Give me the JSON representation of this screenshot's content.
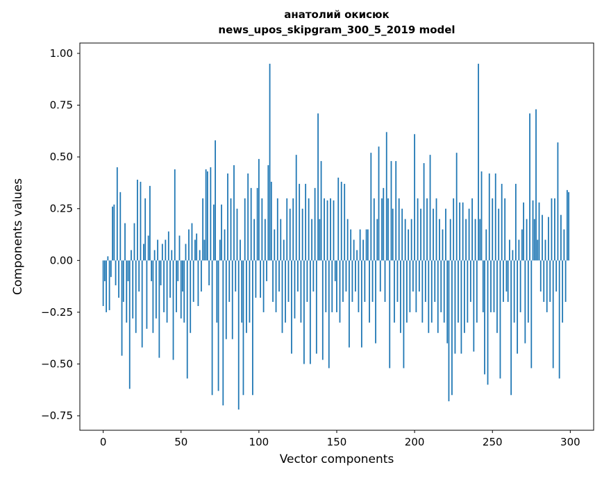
{
  "chart_data": {
    "type": "bar",
    "title": "анатолий окисюк",
    "subtitle": "news_upos_skipgram_300_5_2019 model",
    "xlabel": "Vector components",
    "ylabel": "Components values",
    "bar_color": "#1f77b4",
    "axis_color": "#000000",
    "background_color": "#ffffff",
    "n_components": 300,
    "xlim": [
      -15,
      315
    ],
    "ylim": [
      -0.82,
      1.05
    ],
    "xticks": [
      0,
      50,
      100,
      150,
      200,
      250,
      300
    ],
    "xtick_labels": [
      "0",
      "50",
      "100",
      "150",
      "200",
      "250",
      "300"
    ],
    "yticks": [
      1.0,
      0.75,
      0.5,
      0.25,
      0.0,
      -0.25,
      -0.5,
      -0.75
    ],
    "ytick_labels": [
      "1.00",
      "0.75",
      "0.50",
      "0.25",
      "0.00",
      "−0.25",
      "−0.50",
      "−0.75"
    ],
    "grid": false,
    "legend": false,
    "values": [
      -0.22,
      -0.1,
      -0.25,
      0.02,
      -0.24,
      -0.08,
      0.26,
      0.27,
      -0.12,
      0.45,
      -0.18,
      0.33,
      -0.46,
      -0.2,
      0.18,
      -0.3,
      -0.1,
      -0.62,
      0.05,
      -0.28,
      0.18,
      -0.35,
      0.39,
      -0.15,
      0.38,
      -0.42,
      0.08,
      0.3,
      -0.33,
      0.12,
      0.36,
      -0.1,
      -0.35,
      0.05,
      -0.28,
      0.1,
      -0.47,
      -0.12,
      0.08,
      -0.25,
      0.1,
      -0.3,
      0.14,
      -0.18,
      0.05,
      -0.48,
      0.44,
      -0.25,
      -0.1,
      0.12,
      -0.28,
      -0.15,
      -0.3,
      0.08,
      -0.57,
      0.15,
      -0.35,
      0.18,
      -0.2,
      0.1,
      0.13,
      -0.22,
      0.05,
      -0.15,
      0.3,
      0.1,
      0.44,
      0.43,
      -0.12,
      0.45,
      -0.65,
      0.27,
      0.58,
      -0.3,
      -0.63,
      0.1,
      0.27,
      -0.7,
      0.15,
      -0.38,
      0.42,
      -0.2,
      0.3,
      -0.38,
      0.46,
      -0.15,
      0.25,
      -0.72,
      0.1,
      -0.3,
      -0.65,
      0.3,
      -0.35,
      0.42,
      -0.3,
      0.35,
      -0.65,
      0.2,
      -0.18,
      0.35,
      0.49,
      -0.18,
      0.3,
      -0.25,
      0.2,
      -0.1,
      0.46,
      0.95,
      0.38,
      -0.2,
      0.15,
      -0.25,
      0.3,
      -0.15,
      0.2,
      -0.35,
      0.1,
      -0.3,
      0.3,
      -0.2,
      0.25,
      -0.45,
      0.3,
      -0.28,
      0.51,
      -0.15,
      0.37,
      -0.3,
      0.25,
      -0.5,
      0.37,
      -0.2,
      0.3,
      -0.5,
      0.2,
      -0.15,
      0.35,
      -0.45,
      0.71,
      0.2,
      0.48,
      -0.48,
      0.3,
      -0.25,
      0.29,
      -0.52,
      0.3,
      -0.25,
      0.29,
      -0.1,
      -0.25,
      0.4,
      -0.3,
      0.38,
      -0.2,
      0.37,
      -0.15,
      0.2,
      -0.42,
      0.15,
      -0.2,
      0.1,
      -0.15,
      0.05,
      -0.25,
      0.15,
      -0.42,
      0.1,
      -0.2,
      0.15,
      0.15,
      -0.3,
      0.52,
      -0.2,
      0.3,
      -0.4,
      0.2,
      0.55,
      -0.15,
      0.3,
      0.35,
      -0.2,
      0.62,
      0.3,
      -0.52,
      0.48,
      0.25,
      -0.3,
      0.48,
      -0.2,
      0.3,
      -0.35,
      0.25,
      -0.52,
      0.2,
      -0.3,
      0.15,
      -0.25,
      0.2,
      -0.15,
      0.61,
      -0.25,
      0.3,
      -0.15,
      0.25,
      -0.3,
      0.47,
      -0.2,
      0.3,
      -0.35,
      0.51,
      -0.3,
      0.25,
      -0.2,
      0.3,
      -0.35,
      0.2,
      -0.25,
      0.15,
      -0.3,
      0.25,
      -0.4,
      -0.68,
      0.2,
      -0.65,
      0.3,
      -0.45,
      0.52,
      -0.3,
      0.28,
      -0.45,
      0.28,
      -0.35,
      0.2,
      -0.3,
      0.25,
      -0.2,
      0.3,
      -0.44,
      0.2,
      -0.3,
      0.95,
      0.2,
      0.43,
      -0.25,
      -0.55,
      0.15,
      -0.6,
      0.42,
      -0.25,
      0.3,
      -0.25,
      0.42,
      -0.35,
      0.25,
      -0.57,
      0.37,
      -0.2,
      0.3,
      -0.15,
      -0.2,
      0.1,
      -0.65,
      0.05,
      -0.3,
      0.37,
      -0.45,
      0.1,
      -0.25,
      0.15,
      0.28,
      -0.4,
      0.2,
      -0.3,
      0.71,
      -0.52,
      0.29,
      0.2,
      0.73,
      0.1,
      0.28,
      -0.15,
      0.22,
      -0.2,
      0.1,
      -0.25,
      0.21,
      -0.2,
      0.3,
      -0.52,
      0.3,
      -0.15,
      0.57,
      -0.57,
      0.22,
      -0.3,
      0.15,
      -0.2,
      0.34,
      0.33
    ]
  }
}
